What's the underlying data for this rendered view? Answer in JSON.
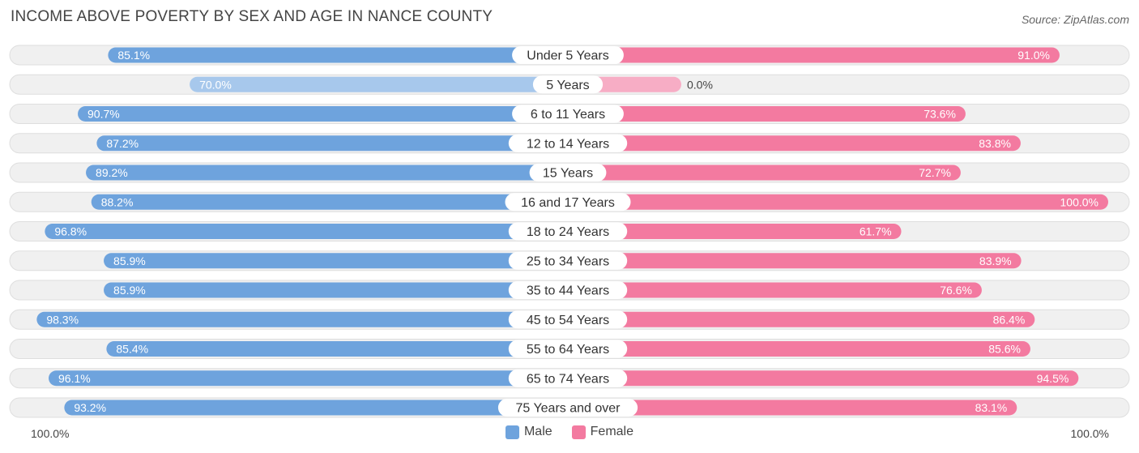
{
  "title": "INCOME ABOVE POVERTY BY SEX AND AGE IN NANCE COUNTY",
  "source": "Source: ZipAtlas.com",
  "colors": {
    "male": "#6ea3dd",
    "male_light": "#a7c8ec",
    "female": "#f37aa0",
    "female_light": "#f7adc5",
    "track": "#f0f0f0",
    "track_border": "#dedede"
  },
  "chart_data": {
    "type": "bar",
    "orientation": "horizontal-diverging",
    "title": "INCOME ABOVE POVERTY BY SEX AND AGE IN NANCE COUNTY",
    "categories": [
      "Under 5 Years",
      "5 Years",
      "6 to 11 Years",
      "12 to 14 Years",
      "15 Years",
      "16 and 17 Years",
      "18 to 24 Years",
      "25 to 34 Years",
      "35 to 44 Years",
      "45 to 54 Years",
      "55 to 64 Years",
      "65 to 74 Years",
      "75 Years and over"
    ],
    "series": [
      {
        "name": "Male",
        "values": [
          85.1,
          70.0,
          90.7,
          87.2,
          89.2,
          88.2,
          96.8,
          85.9,
          85.9,
          98.3,
          85.4,
          96.1,
          93.2
        ],
        "labels": [
          "85.1%",
          "70.0%",
          "90.7%",
          "87.2%",
          "89.2%",
          "88.2%",
          "96.8%",
          "85.9%",
          "85.9%",
          "98.3%",
          "85.4%",
          "96.1%",
          "93.2%"
        ]
      },
      {
        "name": "Female",
        "values": [
          91.0,
          0.0,
          73.6,
          83.8,
          72.7,
          100.0,
          61.7,
          83.9,
          76.6,
          86.4,
          85.6,
          94.5,
          83.1
        ],
        "labels": [
          "91.0%",
          "0.0%",
          "73.6%",
          "83.8%",
          "72.7%",
          "100.0%",
          "61.7%",
          "83.9%",
          "76.6%",
          "86.4%",
          "85.6%",
          "94.5%",
          "83.1%"
        ]
      }
    ],
    "xlim": [
      0,
      100
    ],
    "axis_left_label": "100.0%",
    "axis_right_label": "100.0%",
    "legend": [
      "Male",
      "Female"
    ],
    "legend_position": "bottom-center"
  }
}
